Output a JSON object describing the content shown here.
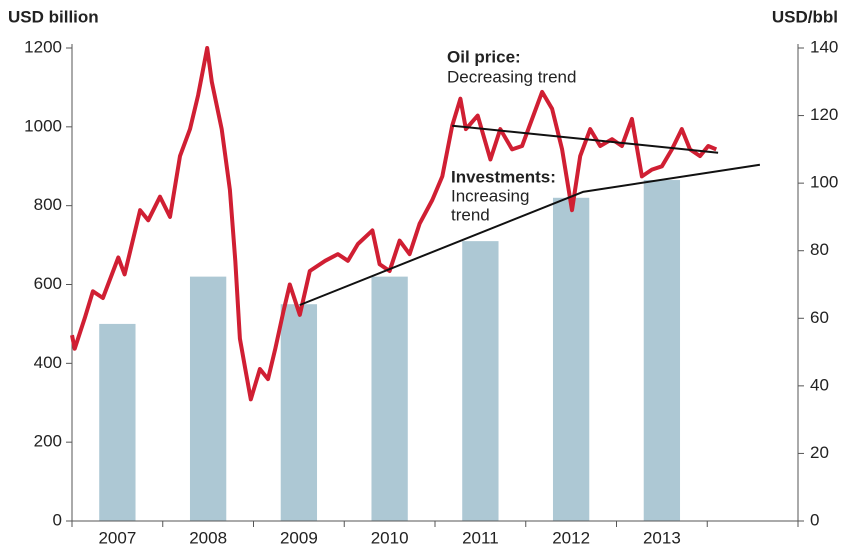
{
  "chart_data": {
    "type": "bar-line",
    "y_label": "USD billion",
    "y2_label": "USD/bbl",
    "categories": [
      "2007",
      "2008",
      "2009",
      "2010",
      "2011",
      "2012",
      "2013",
      null
    ],
    "bar_color": "#adc8d4",
    "values": [
      500,
      620,
      550,
      620,
      710,
      820,
      865,
      null
    ],
    "xlim": [
      2007,
      2015
    ],
    "ylim": [
      0,
      1200
    ],
    "yticks": [
      0,
      200,
      400,
      600,
      800,
      1000,
      1200
    ],
    "y2lim": [
      0,
      140
    ],
    "y2ticks": [
      0,
      20,
      40,
      60,
      80,
      100,
      120,
      140
    ],
    "series": [
      {
        "name": "Oil price",
        "color": "#d01f33",
        "axis": "y2",
        "x": [
          2007.0,
          2007.03,
          2007.14,
          2007.23,
          2007.34,
          2007.51,
          2007.58,
          2007.75,
          2007.84,
          2007.97,
          2008.08,
          2008.19,
          2008.3,
          2008.39,
          2008.49,
          2008.54,
          2008.65,
          2008.74,
          2008.8,
          2008.85,
          2008.91,
          2008.97,
          2009.07,
          2009.16,
          2009.24,
          2009.33,
          2009.4,
          2009.51,
          2009.62,
          2009.79,
          2009.93,
          2010.04,
          2010.15,
          2010.31,
          2010.39,
          2010.5,
          2010.61,
          2010.72,
          2010.83,
          2010.97,
          2011.08,
          2011.19,
          2011.28,
          2011.34,
          2011.47,
          2011.61,
          2011.72,
          2011.85,
          2011.96,
          2012.07,
          2012.18,
          2012.29,
          2012.4,
          2012.51,
          2012.6,
          2012.71,
          2012.82,
          2012.95,
          2013.06,
          2013.17,
          2013.28,
          2013.39,
          2013.5,
          2013.61,
          2013.72,
          2013.81,
          2013.92,
          2014.01,
          2014.1
        ],
        "values": [
          55,
          51,
          60,
          68,
          66,
          78,
          73,
          92,
          89,
          96,
          90,
          108,
          116,
          126,
          140,
          130,
          116,
          98,
          77,
          54,
          45,
          36,
          45,
          42,
          51,
          62,
          70,
          61,
          74,
          77,
          79,
          77,
          82,
          86,
          76,
          74,
          83,
          79,
          88,
          95,
          102,
          117,
          125,
          116,
          120,
          107,
          116,
          110,
          111,
          119,
          127,
          122,
          110,
          92,
          108,
          116,
          111,
          113,
          111,
          119,
          102,
          104,
          105,
          110,
          116,
          110,
          108,
          111,
          110
        ]
      }
    ],
    "trend_lines": [
      {
        "axis": "y2",
        "color": "#111111",
        "x": [
          2011.19,
          2014.12
        ],
        "values": [
          117,
          109
        ]
      },
      {
        "axis": "y",
        "color": "#111111",
        "x": [
          2009.51,
          2012.63,
          2014.58
        ],
        "values": [
          548,
          835,
          904
        ]
      }
    ],
    "annotations": [
      {
        "lines": [
          "Oil price:",
          "Decreasing trend"
        ]
      },
      {
        "lines": [
          "Investments:",
          "Increasing",
          "trend"
        ]
      }
    ]
  }
}
